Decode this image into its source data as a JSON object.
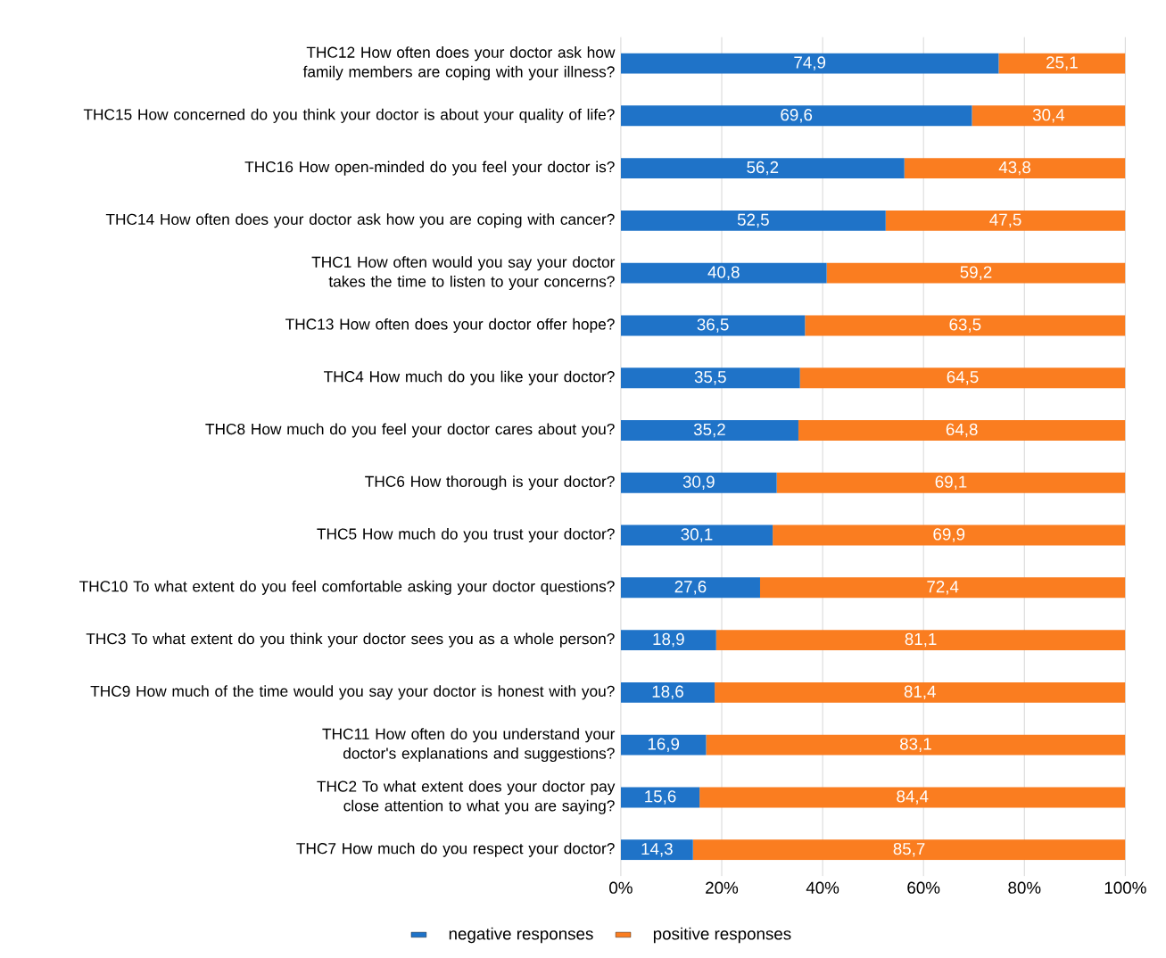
{
  "chart_data": {
    "type": "bar",
    "orientation": "horizontal",
    "stacked": true,
    "categories": [
      "THC12 How often does your doctor ask how family members are coping with your illness?",
      "THC15 How concerned do you think your doctor is about your quality of life?",
      "THC16 How open-minded do you feel your doctor is?",
      "THC14 How often does your doctor ask how you are coping with cancer?",
      "THC1 How often would you say your doctor takes the time to listen to your concerns?",
      "THC13 How often does your doctor offer hope?",
      "THC4 How much do you like your doctor?",
      "THC8 How much do you feel your doctor cares about you?",
      "THC6 How thorough is your doctor?",
      "THC5 How much do you trust your doctor?",
      "THC10 To what extent do you feel comfortable asking your doctor questions?",
      "THC3 To what extent do you think your doctor sees you as a whole person?",
      "THC9 How much of the time would you say your doctor is honest with you?",
      "THC11 How often do you understand your doctor's explanations and suggestions?",
      "THC2 To what extent does your doctor pay close attention to what you are saying?",
      "THC7 How much do you respect your doctor?"
    ],
    "series": [
      {
        "name": "negative responses",
        "color": "#1f73c8",
        "values": [
          74.9,
          69.6,
          56.2,
          52.5,
          40.8,
          36.5,
          35.5,
          35.2,
          30.9,
          30.1,
          27.6,
          18.9,
          18.6,
          16.9,
          15.6,
          14.3
        ],
        "value_labels": [
          "74,9",
          "69,6",
          "56,2",
          "52,5",
          "40,8",
          "36,5",
          "35,5",
          "35,2",
          "30,9",
          "30,1",
          "27,6",
          "18,9",
          "18,6",
          "16,9",
          "15,6",
          "14,3"
        ]
      },
      {
        "name": "positive responses",
        "color": "#fa7d20",
        "values": [
          25.1,
          30.4,
          43.8,
          47.5,
          59.2,
          63.5,
          64.5,
          64.8,
          69.1,
          69.9,
          72.4,
          81.1,
          81.4,
          83.1,
          84.4,
          85.7
        ],
        "value_labels": [
          "25,1",
          "30,4",
          "43,8",
          "47,5",
          "59,2",
          "63,5",
          "64,5",
          "64,8",
          "69,1",
          "69,9",
          "72,4",
          "81,1",
          "81,4",
          "83,1",
          "84,4",
          "85,7"
        ]
      }
    ],
    "xlim": [
      0,
      100
    ],
    "xticks": [
      {
        "value": 0,
        "label": "0%"
      },
      {
        "value": 20,
        "label": "20%"
      },
      {
        "value": 40,
        "label": "40%"
      },
      {
        "value": 60,
        "label": "60%"
      },
      {
        "value": 80,
        "label": "80%"
      },
      {
        "value": 100,
        "label": "100%"
      }
    ],
    "grid": "x",
    "legend": "bottom"
  }
}
